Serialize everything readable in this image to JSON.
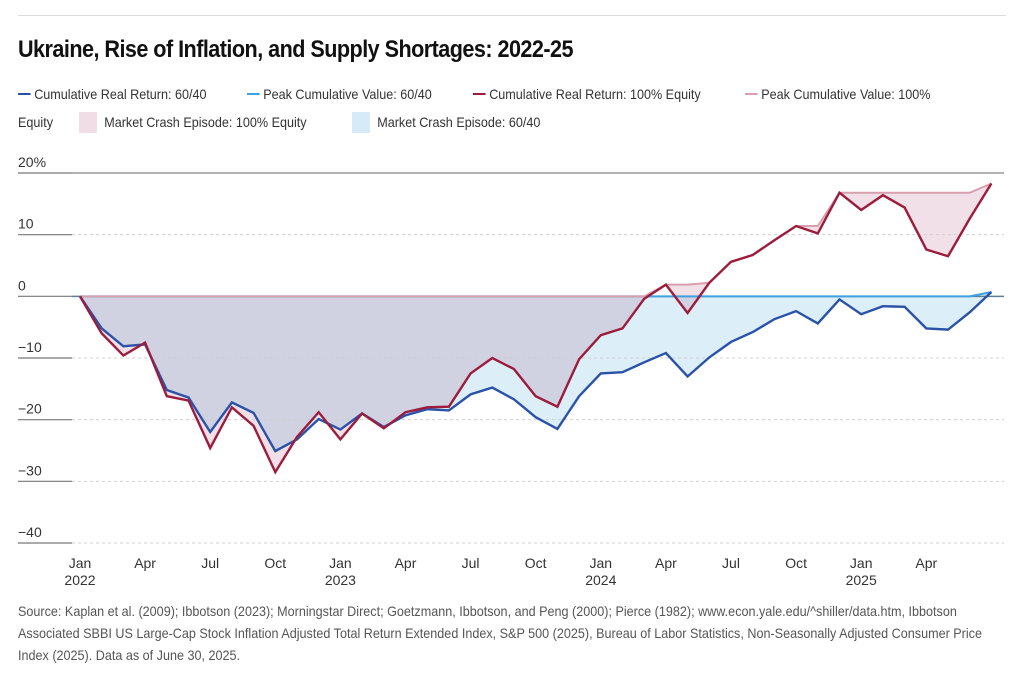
{
  "title": "Ukraine, Rise of Inflation, and Supply Shortages: 2022-25",
  "legend": [
    {
      "label": "Cumulative Real Return: 60/40",
      "kind": "line",
      "color": "#2a52a8"
    },
    {
      "label": "Peak Cumulative Value: 60/40",
      "kind": "line",
      "color": "#3ea2e0"
    },
    {
      "label": "Cumulative Real Return: 100% Equity",
      "kind": "line",
      "color": "#9c1c3c"
    },
    {
      "label": "Peak Cumulative Value:  100%",
      "label_wrap": "Equity",
      "kind": "line",
      "color": "#d8a0ae"
    },
    {
      "label": "Market Crash Episode: 100% Equity",
      "kind": "box",
      "color": "#f0dde6"
    },
    {
      "label": "Market Crash Episode: 60/40",
      "kind": "box",
      "color": "#d6ebf7"
    }
  ],
  "source": "Source: Kaplan et al. (2009); Ibbotson (2023); Morningstar Direct; Goetzmann, Ibbotson, and Peng (2000); Pierce (1982); www.econ.yale.edu/^shiller/data.htm, Ibbotson Associated SBBI US Large-Cap Stock Inflation Adjusted Total Return Extended Index, S&P 500 (2025), Bureau of Labor Statistics, Non-Seasonally Adjusted Consumer Price Index (2025). Data as of June 30, 2025.",
  "chart_data": {
    "type": "line",
    "title": "Ukraine, Rise of Inflation, and Supply Shortages: 2022-25",
    "xlabel": "",
    "ylabel": "",
    "ylim": [
      -40,
      20
    ],
    "yticks": [
      20,
      10,
      0,
      -10,
      -20,
      -30,
      -40
    ],
    "ytick_labels": [
      "20%",
      "10",
      "0",
      "−10",
      "−20",
      "−30",
      "−40"
    ],
    "grid": true,
    "xtick_positions": [
      0,
      3,
      6,
      9,
      12,
      15,
      18,
      21,
      24,
      27,
      30,
      33,
      36,
      39
    ],
    "xtick_labels": [
      "Jan",
      "Apr",
      "Jul",
      "Oct",
      "Jan",
      "Apr",
      "Jul",
      "Oct",
      "Jan",
      "Apr",
      "Jul",
      "Oct",
      "Jan",
      "Apr"
    ],
    "xtick_years": {
      "0": "2022",
      "12": "2023",
      "24": "2024",
      "36": "2025"
    },
    "x_count": 43,
    "legend_position": "top",
    "series": [
      {
        "name": "Cumulative Real Return: 60/40",
        "color": "#2a52a8",
        "values": [
          0,
          -5.2,
          -8.1,
          -7.8,
          -15.2,
          -16.4,
          -22.0,
          -17.2,
          -18.9,
          -25.1,
          -23.2,
          -19.9,
          -21.6,
          -19.0,
          -21.2,
          -19.3,
          -18.3,
          -18.5,
          -15.9,
          -14.8,
          -16.7,
          -19.6,
          -21.5,
          -16.2,
          -12.5,
          -12.3,
          -10.7,
          -9.2,
          -13.0,
          -9.9,
          -7.4,
          -5.8,
          -3.7,
          -2.4,
          -4.4,
          -0.5,
          -2.9,
          -1.6,
          -1.7,
          -5.2,
          -5.4,
          -2.6,
          0.7
        ]
      },
      {
        "name": "Cumulative Real Return: 100% Equity",
        "color": "#9c1c3c",
        "values": [
          0,
          -6.0,
          -9.6,
          -7.5,
          -16.2,
          -16.9,
          -24.6,
          -18.0,
          -21.0,
          -28.5,
          -22.8,
          -18.8,
          -23.2,
          -19.0,
          -21.4,
          -18.8,
          -18.0,
          -17.9,
          -12.5,
          -10.0,
          -11.8,
          -16.2,
          -17.9,
          -10.2,
          -6.3,
          -5.2,
          -0.4,
          1.9,
          -2.7,
          2.2,
          5.6,
          6.7,
          9.1,
          11.4,
          10.2,
          16.8,
          14.0,
          16.4,
          14.4,
          7.6,
          6.5,
          12.6,
          18.3
        ]
      }
    ],
    "derived": [
      {
        "name": "Peak Cumulative Value: 60/40",
        "of": 0,
        "color": "#3ea2e0"
      },
      {
        "name": "Peak Cumulative Value: 100% Equity",
        "of": 1,
        "color": "#d8a0ae"
      }
    ],
    "fills": [
      {
        "name": "Market Crash Episode: 100% Equity",
        "of": 1,
        "color": "#f0dde6"
      },
      {
        "name": "Market Crash Episode: 60/40",
        "of": 0,
        "color": "#d6ebf7"
      }
    ],
    "overlap_color": "#cdd9e4"
  }
}
